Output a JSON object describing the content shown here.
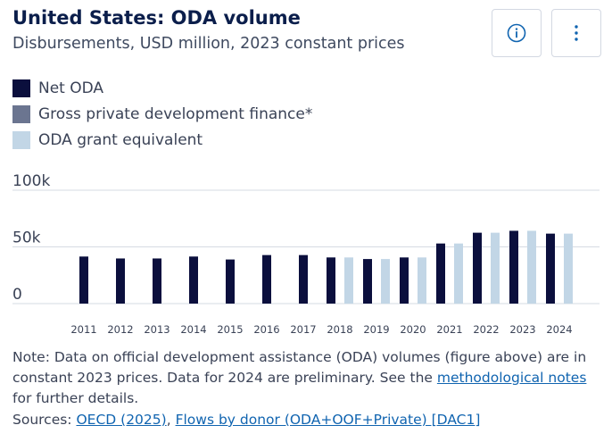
{
  "header": {
    "title": "United States: ODA volume",
    "subtitle": "Disbursements, USD million, 2023 constant prices",
    "info_icon": "info-circle-icon",
    "more_icon": "vertical-ellipsis-icon"
  },
  "colors": {
    "net_oda": "#0b0f3d",
    "gross_private": "#6b7590",
    "grant_equivalent": "#c2d6e6",
    "gridline": "#d6dbe3",
    "accent": "#1064b0"
  },
  "chart_data": {
    "type": "bar",
    "title": "United States: ODA volume",
    "subtitle": "Disbursements, USD million, 2023 constant prices",
    "xlabel": "",
    "ylabel": "",
    "ylim": [
      0,
      100000
    ],
    "yticks": [
      0,
      50000,
      100000
    ],
    "ytick_labels": [
      "0",
      "50k",
      "100k"
    ],
    "grid": true,
    "legend_position": "top-left",
    "categories": [
      "2011",
      "2012",
      "2013",
      "2014",
      "2015",
      "2016",
      "2017",
      "2018",
      "2019",
      "2020",
      "2021",
      "2022",
      "2023",
      "2024"
    ],
    "series": [
      {
        "name": "Net ODA",
        "color": "#0b0f3d",
        "values": [
          41500,
          39800,
          39800,
          41500,
          38900,
          42800,
          42800,
          40700,
          39300,
          40700,
          53000,
          62500,
          64200,
          61700
        ]
      },
      {
        "name": "Gross private development finance*",
        "color": "#6b7590",
        "values": [
          null,
          null,
          null,
          null,
          null,
          null,
          null,
          null,
          null,
          null,
          null,
          null,
          null,
          null
        ]
      },
      {
        "name": "ODA grant equivalent",
        "color": "#c2d6e6",
        "values": [
          null,
          null,
          null,
          null,
          null,
          null,
          null,
          40700,
          39300,
          40700,
          53000,
          62500,
          64200,
          61700
        ]
      }
    ]
  },
  "footer": {
    "note_prefix": "Note: Data on official development assistance (ODA) volumes (figure above) are in constant 2023 prices. Data for 2024 are preliminary. See the ",
    "note_link": "methodological notes",
    "note_suffix": " for further details.",
    "sources_prefix": "Sources: ",
    "source_link_1": "OECD (2025)",
    "sources_sep": ", ",
    "source_link_2": "Flows by donor (ODA+OOF+Private) [DAC1]"
  }
}
